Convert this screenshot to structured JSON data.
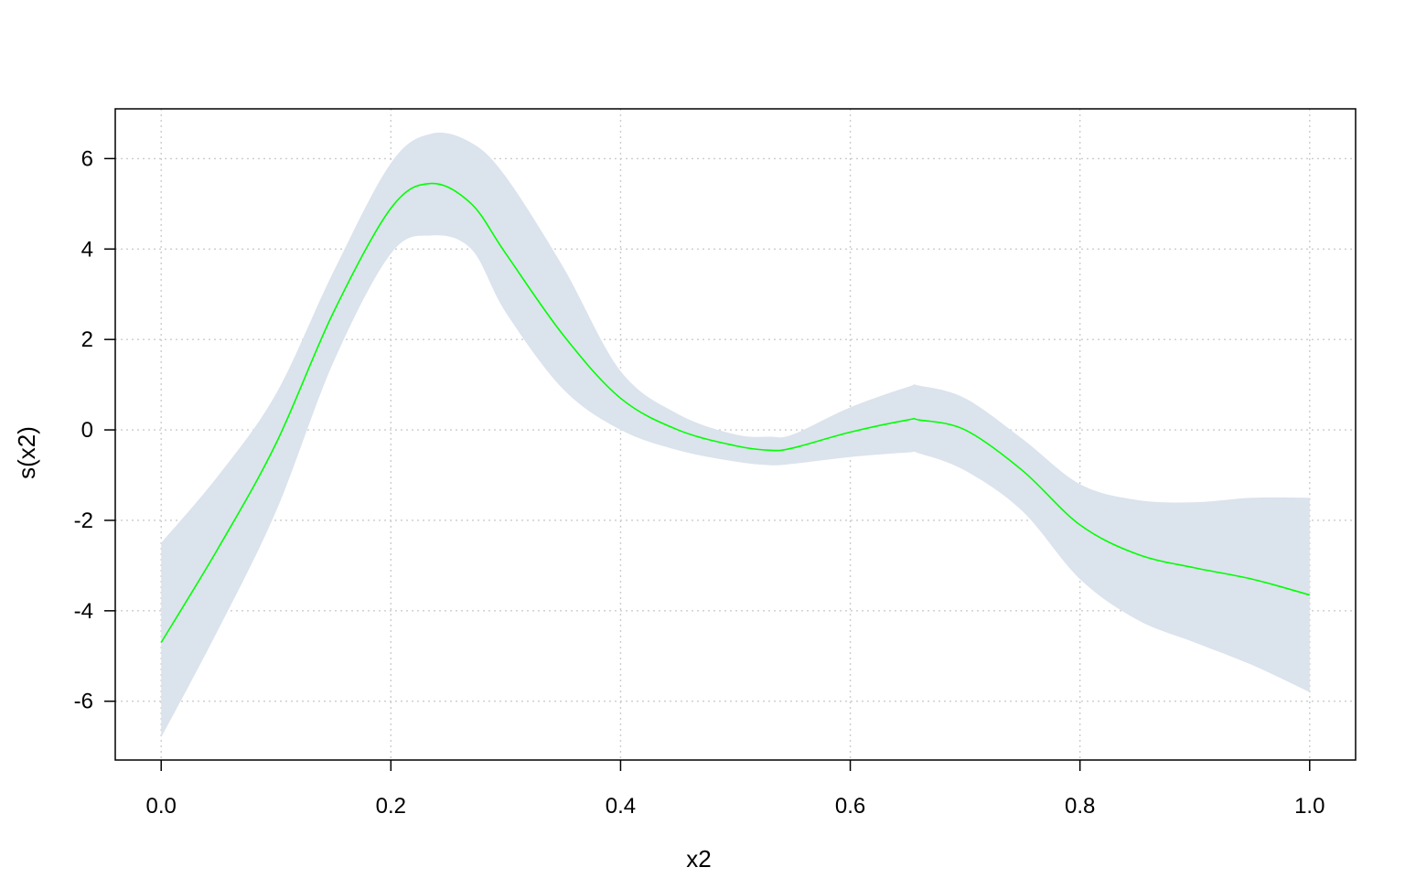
{
  "chart_data": {
    "type": "line",
    "title": "",
    "xlabel": "x2",
    "ylabel": "s(x2)",
    "xlim": [
      -0.04,
      1.04
    ],
    "ylim": [
      -7.3,
      7.1
    ],
    "x_ticks": [
      "0.0",
      "0.2",
      "0.4",
      "0.6",
      "0.8",
      "1.0"
    ],
    "y_ticks": [
      "-6",
      "-4",
      "-2",
      "0",
      "2",
      "4",
      "6"
    ],
    "grid": true,
    "line_color": "#00ff00",
    "band_color": "#dbe3ed",
    "series": [
      {
        "x": [
          0.0,
          0.05,
          0.1,
          0.15,
          0.2,
          0.235,
          0.27,
          0.3,
          0.35,
          0.4,
          0.45,
          0.5,
          0.53,
          0.55,
          0.6,
          0.65,
          0.66,
          0.7,
          0.75,
          0.8,
          0.85,
          0.9,
          0.95,
          1.0
        ],
        "fit": [
          -4.7,
          -2.6,
          -0.3,
          2.6,
          4.9,
          5.45,
          5.0,
          3.9,
          2.1,
          0.7,
          0.0,
          -0.35,
          -0.45,
          -0.4,
          -0.05,
          0.22,
          0.22,
          0.0,
          -0.9,
          -2.1,
          -2.75,
          -3.05,
          -3.3,
          -3.65
        ],
        "upper": [
          -2.5,
          -1.0,
          0.8,
          3.5,
          5.9,
          6.55,
          6.35,
          5.6,
          3.6,
          1.3,
          0.35,
          -0.1,
          -0.15,
          -0.1,
          0.5,
          0.95,
          0.98,
          0.7,
          -0.2,
          -1.2,
          -1.55,
          -1.6,
          -1.5,
          -1.5
        ],
        "lower": [
          -6.8,
          -4.4,
          -1.8,
          1.5,
          3.9,
          4.3,
          4.0,
          2.6,
          0.9,
          0.0,
          -0.45,
          -0.7,
          -0.78,
          -0.75,
          -0.6,
          -0.5,
          -0.52,
          -0.9,
          -1.8,
          -3.3,
          -4.2,
          -4.7,
          -5.2,
          -5.8
        ]
      }
    ]
  }
}
